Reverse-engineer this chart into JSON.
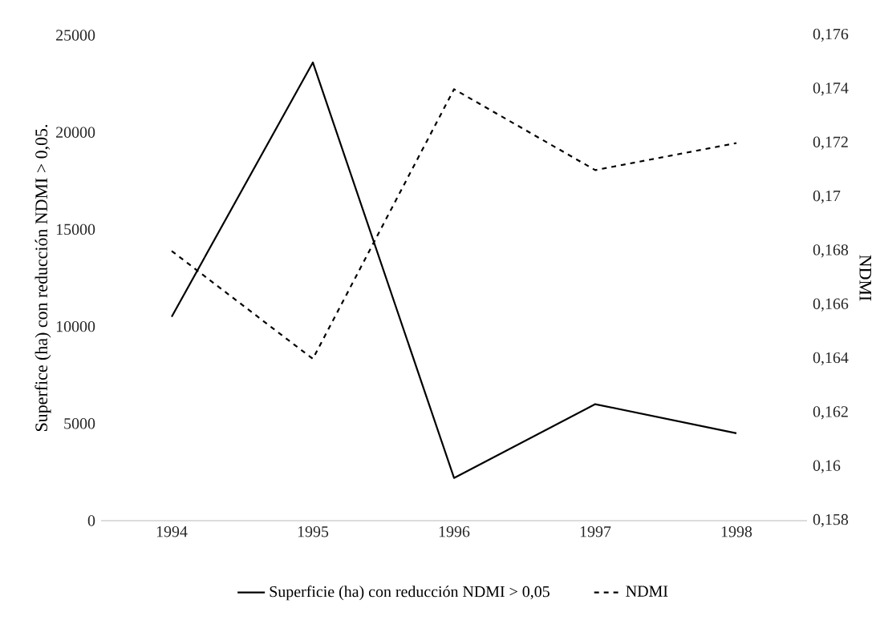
{
  "chart_data": {
    "type": "line",
    "categories": [
      "1994",
      "1995",
      "1996",
      "1997",
      "1998"
    ],
    "ylabel": "Superfice (ha) con reducción NDMI > 0,05.",
    "y2label": "NDMI",
    "ylim": [
      0,
      25000
    ],
    "yticks": [
      0,
      5000,
      10000,
      15000,
      20000,
      25000
    ],
    "y2lim": [
      0.158,
      0.176
    ],
    "y2ticks": [
      {
        "value": 0.158,
        "label": "0,158"
      },
      {
        "value": 0.16,
        "label": "0,16"
      },
      {
        "value": 0.162,
        "label": "0,162"
      },
      {
        "value": 0.164,
        "label": "0,164"
      },
      {
        "value": 0.166,
        "label": "0,166"
      },
      {
        "value": 0.168,
        "label": "0,168"
      },
      {
        "value": 0.17,
        "label": "0,17"
      },
      {
        "value": 0.172,
        "label": "0,172"
      },
      {
        "value": 0.174,
        "label": "0,174"
      },
      {
        "value": 0.176,
        "label": "0,176"
      }
    ],
    "series": [
      {
        "name": "Superficie (ha) con reducción NDMI > 0,05",
        "color": "#000000",
        "line_style": "solid",
        "values": [
          10500,
          23600,
          2200,
          6000,
          4500
        ]
      },
      {
        "name": "NDMI",
        "color": "#000000",
        "line_style": "dashed",
        "axis": "y2",
        "values": [
          0.168,
          0.164,
          0.174,
          0.171,
          0.172
        ]
      }
    ],
    "legend": "bottom",
    "grid": false,
    "marker": "none"
  }
}
